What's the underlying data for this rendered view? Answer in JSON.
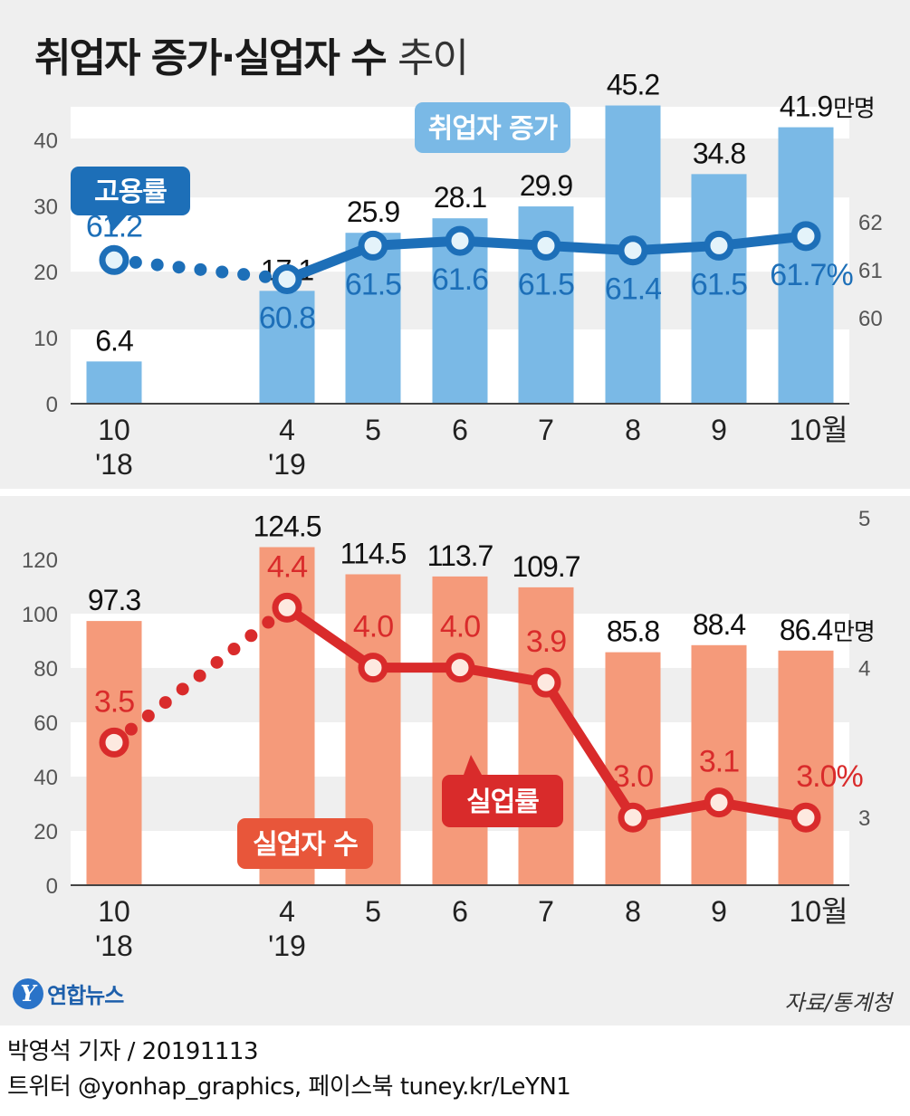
{
  "title": {
    "bold": "취업자 증가·실업자 수",
    "light": "추이"
  },
  "chart_data": [
    {
      "type": "bar+line",
      "categories": [
        "10\n'18",
        "4\n'19",
        "5",
        "6",
        "7",
        "8",
        "9",
        "10월"
      ],
      "bar_series": {
        "name": "취업자 증가",
        "unit": "만명",
        "values": [
          6.4,
          17.1,
          25.9,
          28.1,
          29.9,
          45.2,
          34.8,
          41.9
        ]
      },
      "line_series": {
        "name": "고용률",
        "unit": "%",
        "values": [
          61.2,
          60.8,
          61.5,
          61.6,
          61.5,
          61.4,
          61.5,
          61.7
        ]
      },
      "bar_labels": [
        "6.4",
        "17.1",
        "25.9",
        "28.1",
        "29.9",
        "45.2",
        "34.8",
        "41.9"
      ],
      "line_labels": [
        "61.2",
        "60.8",
        "61.5",
        "61.6",
        "61.5",
        "61.4",
        "61.5",
        "61.7%"
      ],
      "bar_unit_label": "만명",
      "left_ticks": [
        "0",
        "10",
        "20",
        "30",
        "40"
      ],
      "right_ticks": [
        "60",
        "61",
        "62"
      ],
      "ylim_left": [
        0,
        45
      ],
      "ylim_right": [
        58.2,
        64.4
      ],
      "colors": {
        "bar": "#7ab9e6",
        "line": "#1d6fb8",
        "marker_fill": "#e4f3fa"
      }
    },
    {
      "type": "bar+line",
      "categories": [
        "10\n'18",
        "4\n'19",
        "5",
        "6",
        "7",
        "8",
        "9",
        "10월"
      ],
      "bar_series": {
        "name": "실업자 수",
        "unit": "만명",
        "values": [
          97.3,
          124.5,
          114.5,
          113.7,
          109.7,
          85.8,
          88.4,
          86.4
        ]
      },
      "line_series": {
        "name": "실업률",
        "unit": "%",
        "values": [
          3.5,
          4.4,
          4.0,
          4.0,
          3.9,
          3.0,
          3.1,
          3.0
        ]
      },
      "bar_labels": [
        "97.3",
        "124.5",
        "114.5",
        "113.7",
        "109.7",
        "85.8",
        "88.4",
        "86.4"
      ],
      "line_labels": [
        "3.5",
        "4.4",
        "4.0",
        "4.0",
        "3.9",
        "3.0",
        "3.1",
        "3.0%"
      ],
      "bar_unit_label": "만명",
      "left_ticks": [
        "0",
        "20",
        "40",
        "60",
        "80",
        "100",
        "120"
      ],
      "right_ticks": [
        "3",
        "4",
        "5"
      ],
      "ylim_left": [
        0,
        120
      ],
      "ylim_right": [
        2.5,
        5.0
      ],
      "colors": {
        "bar": "#f59a7a",
        "line": "#d92b2b",
        "marker_fill": "#fde9e0"
      }
    }
  ],
  "logo": {
    "mark": "Y",
    "text": "연합뉴스"
  },
  "source": "자료/통계청",
  "footer": {
    "reporter": "박영석 기자 /  20191113",
    "social": "트위터 @yonhap_graphics, 페이스북 tuney.kr/LeYN1"
  }
}
